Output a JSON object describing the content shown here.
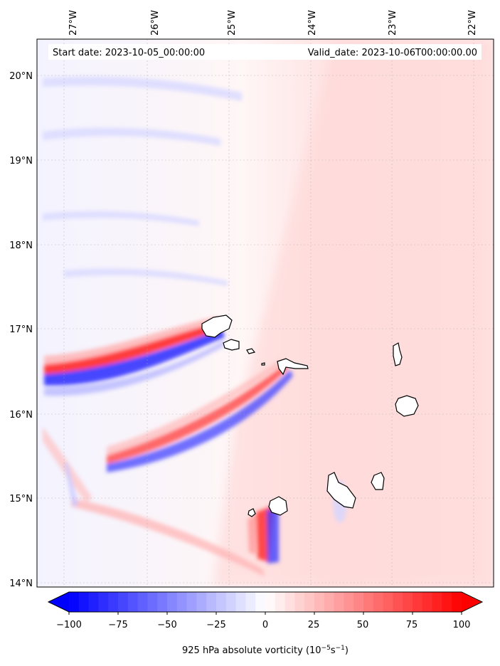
{
  "map": {
    "start_date_text": "Start date: 2023-10-05_00:00:00",
    "valid_date_text": "Valid_date: 2023-10-06T00:00:00.00",
    "lon_labels": [
      "27°W",
      "26°W",
      "25°W",
      "24°W",
      "23°W",
      "22°W"
    ],
    "lon_values": [
      -27,
      -26,
      -25,
      -24,
      -23,
      -22
    ],
    "lat_labels": [
      "20°N",
      "19°N",
      "18°N",
      "17°N",
      "16°N",
      "15°N",
      "14°N"
    ],
    "lat_values": [
      20,
      19,
      18,
      17,
      16,
      15,
      14
    ],
    "extent": {
      "lon_min": -27.33,
      "lon_max": -21.7,
      "lat_min": 13.96,
      "lat_max": 20.43
    }
  },
  "colorbar": {
    "ticks": [
      "−100",
      "−75",
      "−50",
      "−25",
      "0",
      "25",
      "50",
      "75",
      "100"
    ],
    "tick_values": [
      -100,
      -75,
      -50,
      -25,
      0,
      25,
      50,
      75,
      100
    ],
    "range": [
      -100,
      100
    ],
    "label_main": "925 hPa absolute vorticity (10",
    "label_exp1": "−5",
    "label_mid": "s",
    "label_exp2": "−1",
    "label_end": ")",
    "colormap": "bwr",
    "extend": "both"
  },
  "colors": {
    "negative": "#0000ff",
    "zero": "#ffffff",
    "positive": "#ff0000"
  }
}
